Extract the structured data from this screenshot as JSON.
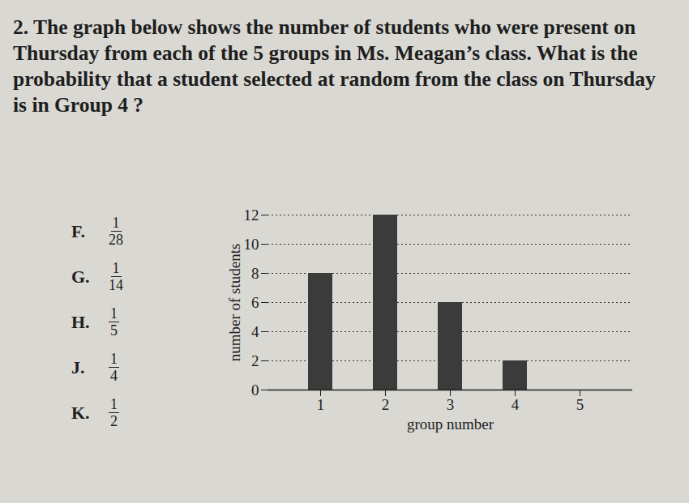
{
  "question": "2. The graph below shows the number of students who were present on Thursday from each of the 5 groups in Ms. Meagan’s class. What is the probability that a student selected at random from the class on Thursday is in Group 4 ?",
  "choices": [
    {
      "letter": "F.",
      "numerator": 1,
      "denominator": 28
    },
    {
      "letter": "G.",
      "numerator": 1,
      "denominator": 14
    },
    {
      "letter": "H.",
      "numerator": 1,
      "denominator": 5
    },
    {
      "letter": "J.",
      "numerator": 1,
      "denominator": 4
    },
    {
      "letter": "K.",
      "numerator": 1,
      "denominator": 2
    }
  ],
  "chart_data": {
    "type": "bar",
    "x_label": "group number",
    "y_label": "number of students",
    "categories": [
      "1",
      "2",
      "3",
      "4",
      "5"
    ],
    "values": [
      8,
      12,
      6,
      2,
      0
    ],
    "color": "#3b3b3b",
    "ylim": [
      0,
      12
    ],
    "yticks": [
      0,
      2,
      4,
      6,
      8,
      10,
      12
    ],
    "grid": true
  }
}
